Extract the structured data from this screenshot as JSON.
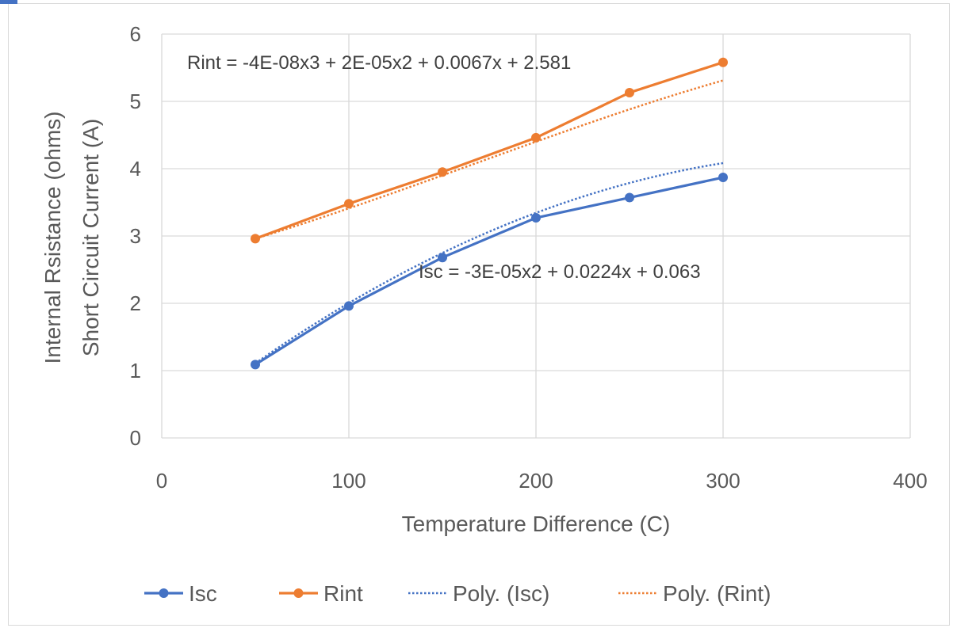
{
  "chart_data": {
    "type": "line",
    "title": "",
    "xlabel": "Temperature Difference (C)",
    "ylabel_lines": [
      "Internal Rsistance (ohms)",
      "Short Circuit Current (A)"
    ],
    "xlim": [
      0,
      400
    ],
    "ylim": [
      0,
      6
    ],
    "x_ticks": [
      0,
      100,
      200,
      300,
      400
    ],
    "y_ticks": [
      0,
      1,
      2,
      3,
      4,
      5,
      6
    ],
    "grid": true,
    "legend_position": "bottom",
    "x": [
      50,
      100,
      150,
      200,
      250,
      300
    ],
    "series": [
      {
        "name": "Isc",
        "color": "#4472c4",
        "values": [
          1.09,
          1.96,
          2.68,
          3.27,
          3.57,
          3.87
        ]
      },
      {
        "name": "Rint",
        "color": "#ed7d31",
        "values": [
          2.96,
          3.48,
          3.95,
          4.46,
          5.13,
          5.58
        ]
      }
    ],
    "trendlines": [
      {
        "name": "Poly. (Isc)",
        "color": "#4472c4",
        "equation": "Isc = -3E-05x2 + 0.0224x + 0.063",
        "coefficients": [
          -3e-05,
          0.0224,
          0.063
        ]
      },
      {
        "name": "Poly. (Rint)",
        "color": "#ed7d31",
        "equation": "Rint = -4E-08x3 + 2E-05x2 + 0.0067x + 2.581",
        "coefficients": [
          -4e-08,
          2e-05,
          0.0067,
          2.581
        ]
      }
    ]
  }
}
